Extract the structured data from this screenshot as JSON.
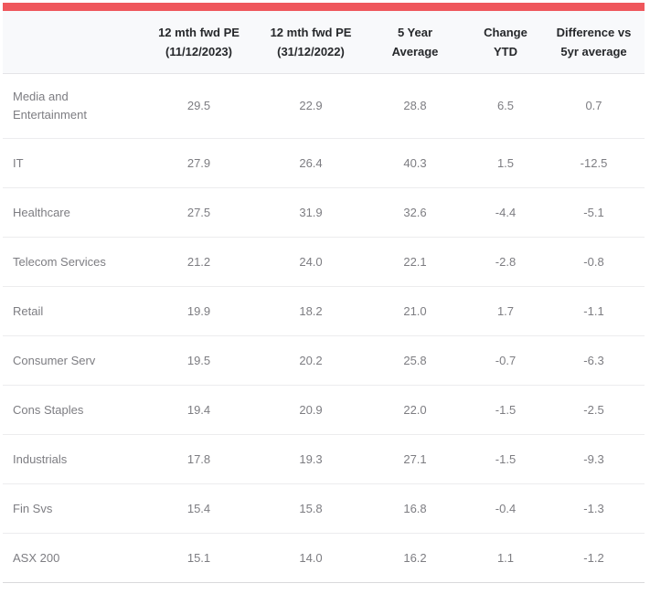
{
  "page": {
    "accent_color": "#ef575c",
    "header_bg": "#f8f9fb",
    "header_text_color": "#26282b",
    "body_text_color": "#7d7d82"
  },
  "table": {
    "columns": [
      {
        "line1": "12 mth fwd PE",
        "line2": "(11/12/2023)"
      },
      {
        "line1": "12 mth fwd PE",
        "line2": "(31/12/2022)"
      },
      {
        "line1": "5 Year",
        "line2": "Average"
      },
      {
        "line1": "Change",
        "line2": "YTD"
      },
      {
        "line1": "Difference vs",
        "line2": "5yr average"
      }
    ],
    "rows": [
      {
        "name": "Media and Entertainment",
        "values": [
          "29.5",
          "22.9",
          "28.8",
          "6.5",
          "0.7"
        ]
      },
      {
        "name": "IT",
        "values": [
          "27.9",
          "26.4",
          "40.3",
          "1.5",
          "-12.5"
        ]
      },
      {
        "name": "Healthcare",
        "values": [
          "27.5",
          "31.9",
          "32.6",
          "-4.4",
          "-5.1"
        ]
      },
      {
        "name": "Telecom Services",
        "values": [
          "21.2",
          "24.0",
          "22.1",
          "-2.8",
          "-0.8"
        ]
      },
      {
        "name": "Retail",
        "values": [
          "19.9",
          "18.2",
          "21.0",
          "1.7",
          "-1.1"
        ]
      },
      {
        "name": "Consumer Serv",
        "values": [
          "19.5",
          "20.2",
          "25.8",
          "-0.7",
          "-6.3"
        ]
      },
      {
        "name": "Cons Staples",
        "values": [
          "19.4",
          "20.9",
          "22.0",
          "-1.5",
          "-2.5"
        ]
      },
      {
        "name": "Industrials",
        "values": [
          "17.8",
          "19.3",
          "27.1",
          "-1.5",
          "-9.3"
        ]
      },
      {
        "name": "Fin Svs",
        "values": [
          "15.4",
          "15.8",
          "16.8",
          "-0.4",
          "-1.3"
        ]
      },
      {
        "name": "ASX 200",
        "values": [
          "15.1",
          "14.0",
          "16.2",
          "1.1",
          "-1.2"
        ]
      }
    ]
  },
  "chart_data": {
    "type": "table",
    "title": "",
    "columns": [
      "",
      "12 mth fwd PE (11/12/2023)",
      "12 mth fwd PE (31/12/2022)",
      "5 Year Average",
      "Change YTD",
      "Difference vs 5yr average"
    ],
    "rows": [
      [
        "Media and Entertainment",
        29.5,
        22.9,
        28.8,
        6.5,
        0.7
      ],
      [
        "IT",
        27.9,
        26.4,
        40.3,
        1.5,
        -12.5
      ],
      [
        "Healthcare",
        27.5,
        31.9,
        32.6,
        -4.4,
        -5.1
      ],
      [
        "Telecom Services",
        21.2,
        24.0,
        22.1,
        -2.8,
        -0.8
      ],
      [
        "Retail",
        19.9,
        18.2,
        21.0,
        1.7,
        -1.1
      ],
      [
        "Consumer Serv",
        19.5,
        20.2,
        25.8,
        -0.7,
        -6.3
      ],
      [
        "Cons Staples",
        19.4,
        20.9,
        22.0,
        -1.5,
        -2.5
      ],
      [
        "Industrials",
        17.8,
        19.3,
        27.1,
        -1.5,
        -9.3
      ],
      [
        "Fin Svs",
        15.4,
        15.8,
        16.8,
        -0.4,
        -1.3
      ],
      [
        "ASX 200",
        15.1,
        14.0,
        16.2,
        1.1,
        -1.2
      ]
    ]
  }
}
